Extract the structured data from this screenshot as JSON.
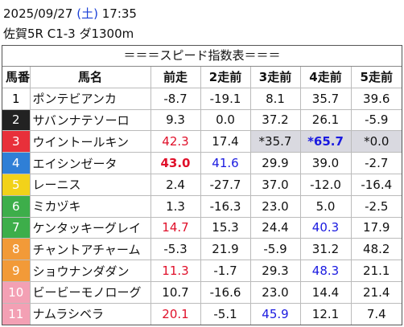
{
  "header": {
    "date": "2025/09/27",
    "weekday": "(土)",
    "time": "17:35",
    "race": "佐賀5R C1-3 ダ1300m"
  },
  "table": {
    "title": "＝＝＝スピード指数表＝＝＝",
    "columns": [
      "馬番",
      "馬名",
      "前走",
      "2走前",
      "3走前",
      "4走前",
      "5走前"
    ],
    "rows": [
      {
        "number": "1",
        "frame_color": "#ffffff",
        "number_color": "#000000",
        "name": "ポンテビアンカ",
        "cells": [
          "-8.7",
          "-19.1",
          "8.1",
          "35.7",
          "39.6"
        ]
      },
      {
        "number": "2",
        "frame_color": "#222222",
        "number_color": "#ffffff",
        "name": "サバンナテソーロ",
        "cells": [
          "9.3",
          "0.0",
          "37.2",
          "26.1",
          "-5.9"
        ]
      },
      {
        "number": "3",
        "frame_color": "#e8303a",
        "number_color": "#ffffff",
        "name": "ウイントールキン",
        "cells": [
          {
            "text": "42.3",
            "color": "#e0102a"
          },
          "17.4",
          {
            "text": "*35.7",
            "background": "#d9d9e0"
          },
          {
            "text": "*65.7",
            "color": "#1a1ae0",
            "bold": true,
            "background": "#d9d9e0"
          },
          {
            "text": "*0.0",
            "background": "#d9d9e0"
          }
        ]
      },
      {
        "number": "4",
        "frame_color": "#2f7fd6",
        "number_color": "#ffffff",
        "name": "エイシンゼータ",
        "cells": [
          {
            "text": "43.0",
            "color": "#e0102a",
            "bold": true
          },
          {
            "text": "41.6",
            "color": "#1a1ae0"
          },
          "29.9",
          "39.0",
          "-2.7"
        ]
      },
      {
        "number": "5",
        "frame_color": "#f2d21a",
        "number_color": "#ffffff",
        "name": "レーニス",
        "cells": [
          "2.4",
          "-27.7",
          "37.0",
          "-12.0",
          "-16.4"
        ]
      },
      {
        "number": "6",
        "frame_color": "#3dae4a",
        "number_color": "#ffffff",
        "name": "ミカヅキ",
        "cells": [
          "1.3",
          "-16.3",
          "23.0",
          "5.0",
          "-2.5"
        ]
      },
      {
        "number": "7",
        "frame_color": "#3dae4a",
        "number_color": "#ffffff",
        "name": "ケンタッキーグレイ",
        "cells": [
          {
            "text": "14.7",
            "color": "#e0102a"
          },
          "15.3",
          "24.4",
          {
            "text": "40.3",
            "color": "#1a1ae0"
          },
          "17.9"
        ]
      },
      {
        "number": "8",
        "frame_color": "#f29a38",
        "number_color": "#ffffff",
        "name": "チャントアチャーム",
        "cells": [
          "-5.3",
          "21.9",
          "-5.9",
          "31.2",
          "48.2"
        ]
      },
      {
        "number": "9",
        "frame_color": "#f29a38",
        "number_color": "#ffffff",
        "name": "ショウナンダダン",
        "cells": [
          {
            "text": "11.3",
            "color": "#e0102a"
          },
          "-1.7",
          "29.3",
          {
            "text": "48.3",
            "color": "#1a1ae0"
          },
          "21.1"
        ]
      },
      {
        "number": "10",
        "frame_color": "#f3a0b4",
        "number_color": "#ffffff",
        "name": "ビービーモノローグ",
        "cells": [
          "10.7",
          "-16.6",
          "23.0",
          "14.4",
          "21.4"
        ]
      },
      {
        "number": "11",
        "frame_color": "#f3a0b4",
        "number_color": "#ffffff",
        "name": "ナムラシベラ",
        "cells": [
          {
            "text": "20.1",
            "color": "#e0102a"
          },
          "-5.1",
          {
            "text": "45.9",
            "color": "#1a1ae0"
          },
          "12.1",
          "7.4"
        ]
      }
    ]
  }
}
